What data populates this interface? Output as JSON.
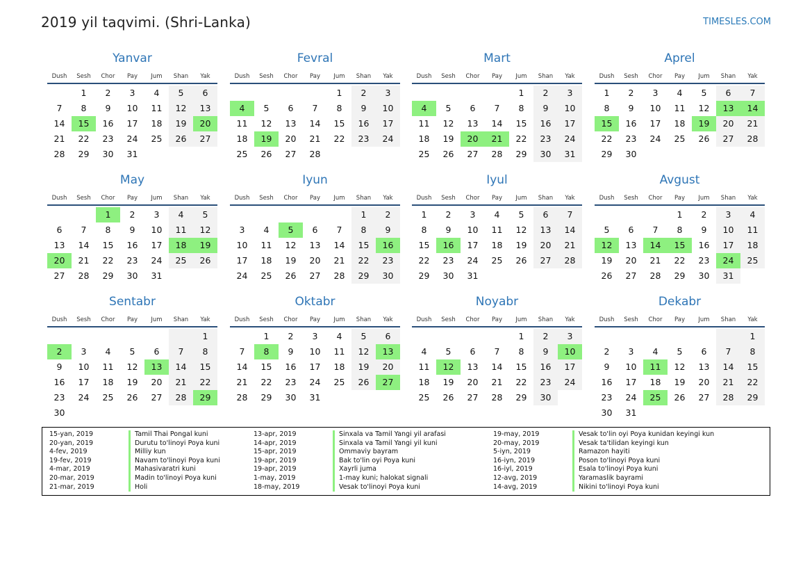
{
  "header": {
    "title": "2019 yil taqvimi. (Shri-Lanka)",
    "brand": "TIMESLES.COM"
  },
  "weekdays": [
    "Dush",
    "Sesh",
    "Chor",
    "Pay",
    "Jum",
    "Shan",
    "Yak"
  ],
  "months": [
    {
      "name": "Yanvar",
      "offset": 1,
      "days": 31,
      "holidays": [
        15,
        20
      ]
    },
    {
      "name": "Fevral",
      "offset": 4,
      "days": 28,
      "holidays": [
        4,
        19
      ]
    },
    {
      "name": "Mart",
      "offset": 4,
      "days": 31,
      "holidays": [
        4,
        20,
        21
      ]
    },
    {
      "name": "Aprel",
      "offset": 0,
      "days": 30,
      "holidays": [
        13,
        14,
        15,
        19
      ]
    },
    {
      "name": "May",
      "offset": 2,
      "days": 31,
      "holidays": [
        1,
        18,
        19,
        20
      ]
    },
    {
      "name": "Iyun",
      "offset": 5,
      "days": 30,
      "holidays": [
        5,
        16
      ]
    },
    {
      "name": "Iyul",
      "offset": 0,
      "days": 31,
      "holidays": [
        16
      ]
    },
    {
      "name": "Avgust",
      "offset": 3,
      "days": 31,
      "holidays": [
        12,
        14,
        15,
        24
      ]
    },
    {
      "name": "Sentabr",
      "offset": 6,
      "days": 30,
      "holidays": [
        2,
        13,
        29
      ]
    },
    {
      "name": "Oktabr",
      "offset": 1,
      "days": 31,
      "holidays": [
        8,
        13,
        27
      ]
    },
    {
      "name": "Noyabr",
      "offset": 4,
      "days": 30,
      "holidays": [
        10,
        12
      ]
    },
    {
      "name": "Dekabr",
      "offset": 6,
      "days": 31,
      "holidays": [
        11,
        25
      ]
    }
  ],
  "legend": [
    [
      {
        "date": "15-yan, 2019",
        "name": "Tamil Thai Pongal kuni"
      },
      {
        "date": "20-yan, 2019",
        "name": "Durutu to'linoyi Poya kuni"
      },
      {
        "date": "4-fev, 2019",
        "name": "Milliy kun"
      },
      {
        "date": "19-fev, 2019",
        "name": "Navam to'linoyi Poya kuni"
      },
      {
        "date": "4-mar, 2019",
        "name": "Mahasivaratri kuni"
      },
      {
        "date": "20-mar, 2019",
        "name": "Madin to'linoyi Poya kuni"
      },
      {
        "date": "21-mar, 2019",
        "name": "Holi"
      }
    ],
    [
      {
        "date": "13-apr, 2019",
        "name": "Sinxala va Tamil Yangi yil arafasi"
      },
      {
        "date": "14-apr, 2019",
        "name": "Sinxala va Tamil Yangi yil kuni"
      },
      {
        "date": "15-apr, 2019",
        "name": "Ommaviy bayram"
      },
      {
        "date": "19-apr, 2019",
        "name": "Bak to'lin oyi Poya kuni"
      },
      {
        "date": "19-apr, 2019",
        "name": "Xayrli juma"
      },
      {
        "date": "1-may, 2019",
        "name": "1-may kuni; halokat signali"
      },
      {
        "date": "18-may, 2019",
        "name": "Vesak to'linoyi Poya kuni"
      }
    ],
    [
      {
        "date": "19-may, 2019",
        "name": "Vesak to'lin oyi Poya kunidan keyingi kun"
      },
      {
        "date": "20-may, 2019",
        "name": "Vesak ta'tilidan keyingi kun"
      },
      {
        "date": "5-iyn, 2019",
        "name": "Ramazon hayiti"
      },
      {
        "date": "16-iyn, 2019",
        "name": "Poson to'linoyi Poya kuni"
      },
      {
        "date": "16-iyl, 2019",
        "name": "Esala to'linoyi Poya kuni"
      },
      {
        "date": "12-avg, 2019",
        "name": "Yaramaslik bayrami"
      },
      {
        "date": "14-avg, 2019",
        "name": "Nikini to'linoyi Poya kuni"
      }
    ]
  ]
}
